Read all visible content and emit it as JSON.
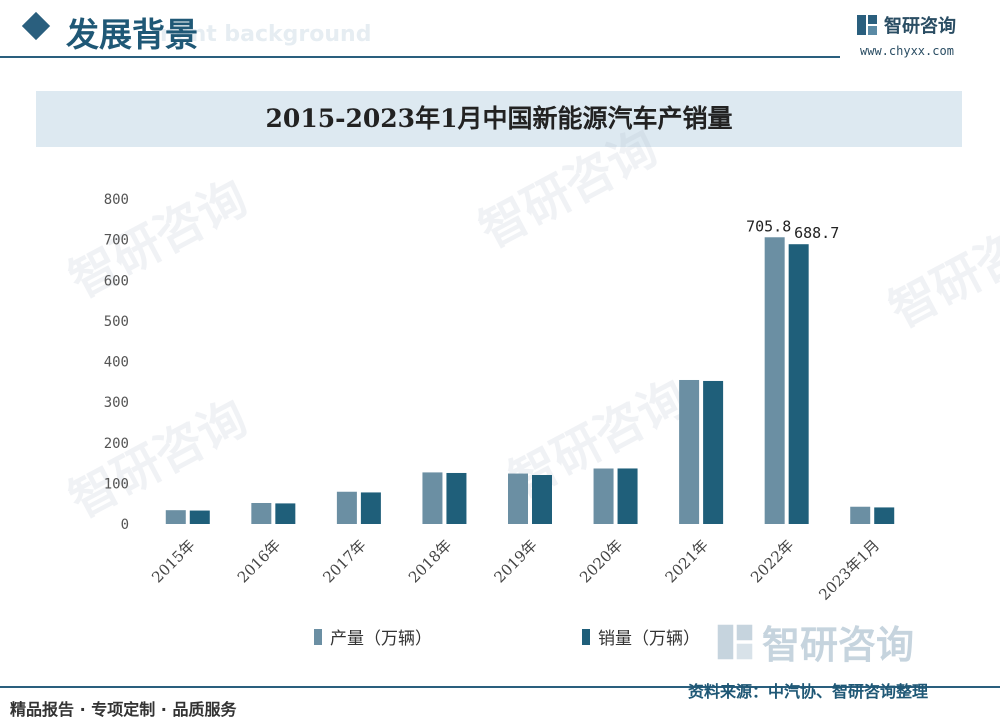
{
  "header": {
    "section_title": "发展背景",
    "section_title_en": "nent background",
    "brand_name": "智研咨询",
    "brand_url": "www.chyxx.com",
    "accent_color": "#2a5f7e"
  },
  "watermark_text": "智研咨询",
  "chart_data": {
    "type": "bar",
    "title": "2015-2023年1月中国新能源汽车产销量",
    "categories": [
      "2015年",
      "2016年",
      "2017年",
      "2018年",
      "2019年",
      "2020年",
      "2021年",
      "2022年",
      "2023年1月"
    ],
    "series": [
      {
        "name": "产量（万辆）",
        "color": "#6b8fa3",
        "values": [
          34.0,
          51.7,
          79.4,
          127.0,
          124.2,
          136.6,
          354.5,
          705.8,
          42.5
        ]
      },
      {
        "name": "销量（万辆）",
        "color": "#1f5f7a",
        "values": [
          33.1,
          50.7,
          77.7,
          125.6,
          120.6,
          136.7,
          352.1,
          688.7,
          40.8
        ]
      }
    ],
    "data_labels": [
      {
        "category": "2022年",
        "series": 0,
        "text": "705.8"
      },
      {
        "category": "2022年",
        "series": 1,
        "text": "688.7"
      }
    ],
    "yticks": [
      0,
      100,
      200,
      300,
      400,
      500,
      600,
      700,
      800
    ],
    "ylim": [
      0,
      800
    ],
    "legend_position": "bottom",
    "grid": false
  },
  "footer": {
    "slogan": "精品报告 · 专项定制 · 品质服务",
    "source": "资料来源：中汽协、智研咨询整理"
  }
}
